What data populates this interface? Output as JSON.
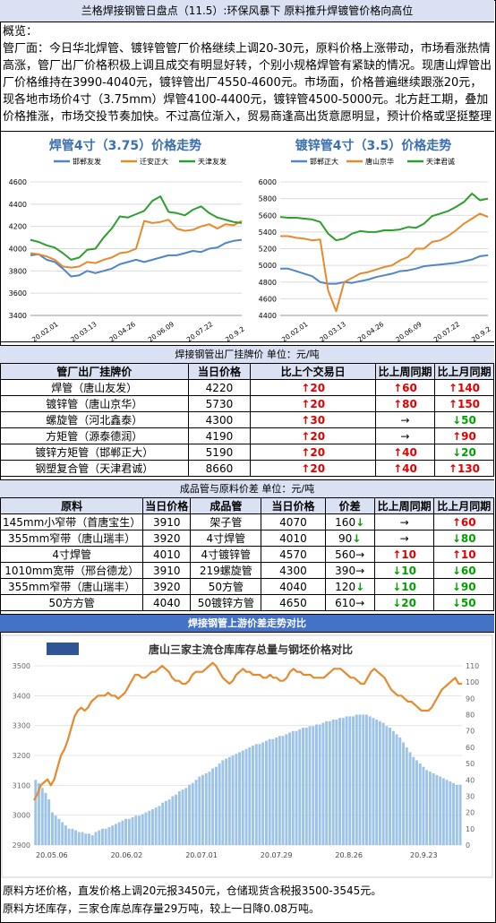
{
  "header": {
    "title": "兰格焊接钢管日盘点（11.5）:环保风暴下  原料推升焊镀管价格向高位"
  },
  "summary": {
    "label": "概览：",
    "text": "管厂面：今日华北焊管、镀锌管管厂价格继续上调20-30元，原料价格上涨带动，市场看涨热情高涨，管厂出厂价格积极上调且成交有明显好转，个别小规格焊管有紧缺的情况。现唐山焊管出厂价格维持在3990-4040元，镀锌管出厂4550-4600元。市场面，价格普遍继续跟涨20元，现各地市场价4寸（3.75mm）焊管4100-4400元，镀锌管4500-5000元。北方赶工期，叠加价格推涨，市场交投节奏加快。不过高位渐入，贸易商逢高出货意愿明显，预计价格或坚挺整理"
  },
  "colors": {
    "blue": "#4f86c6",
    "orange": "#e58a2e",
    "green": "#2ca02c",
    "bar": "#9dc3e6",
    "up": "#e00000",
    "down": "#00a000"
  },
  "chart1": {
    "title": "焊管4寸（3.75）价格走势",
    "legend": [
      "邯郸友发",
      "迁安正大",
      "天津友发"
    ],
    "yticks": [
      "4600",
      "4400",
      "4200",
      "4000",
      "3800",
      "3600",
      "3400"
    ],
    "xticks": [
      "20.02.01",
      "20.03.13",
      "20.04.26",
      "20.06.09",
      "20.07.22",
      "20.9.2"
    ]
  },
  "chart2": {
    "title": "镀锌管4寸（3.5）价格走势",
    "legend": [
      "邯郸正大",
      "唐山京华",
      "天津君诚"
    ],
    "yticks": [
      "6000",
      "5800",
      "5600",
      "5400",
      "5200",
      "5000",
      "4800",
      "4600",
      "4400"
    ],
    "xticks": [
      "20.02.01",
      "20.03.13",
      "20.04.26",
      "20.06.09",
      "20.07.22",
      "20.9.2"
    ]
  },
  "chart_data": [
    {
      "type": "line",
      "title": "焊管4寸（3.75）价格走势",
      "ylim": [
        3400,
        4600
      ],
      "series": [
        {
          "name": "邯郸友发",
          "values": [
            3940,
            3950,
            3900,
            3880,
            3820,
            3750,
            3760,
            3800,
            3780,
            3800,
            3820,
            3860,
            3880,
            3900,
            3880,
            3900,
            3920,
            3940,
            3940,
            3960,
            3980,
            3970,
            4000,
            4010,
            4050,
            4070,
            4080
          ]
        },
        {
          "name": "迁安正大",
          "values": [
            3960,
            3950,
            3930,
            3900,
            3840,
            3830,
            3840,
            3880,
            3870,
            3900,
            3920,
            3960,
            3970,
            4000,
            4250,
            4230,
            4240,
            4260,
            4180,
            4160,
            4170,
            4200,
            4220,
            4180,
            4220,
            4210,
            4250
          ]
        },
        {
          "name": "天津友发",
          "values": [
            4080,
            4060,
            4030,
            4010,
            3960,
            3900,
            3920,
            3990,
            4000,
            4100,
            4180,
            4290,
            4280,
            4310,
            4340,
            4430,
            4470,
            4330,
            4320,
            4300,
            4350,
            4380,
            4320,
            4280,
            4260,
            4240,
            4230
          ]
        }
      ]
    },
    {
      "type": "line",
      "title": "镀锌管4寸（3.5）价格走势",
      "ylim": [
        4400,
        6000
      ],
      "series": [
        {
          "name": "邯郸正大",
          "values": [
            4960,
            4960,
            4930,
            4900,
            4870,
            4800,
            4780,
            4780,
            4800,
            4790,
            4810,
            4830,
            4860,
            4880,
            4900,
            4930,
            4940,
            4960,
            4990,
            5000,
            5010,
            5020,
            5030,
            5050,
            5070,
            5110,
            5120
          ]
        },
        {
          "name": "唐山京华",
          "values": [
            5350,
            5350,
            5330,
            5320,
            5300,
            5310,
            4700,
            4450,
            4800,
            4850,
            4900,
            4920,
            4950,
            4980,
            5000,
            5060,
            5100,
            5200,
            5200,
            5280,
            5300,
            5350,
            5420,
            5500,
            5560,
            5620,
            5580
          ]
        },
        {
          "name": "天津君诚",
          "values": [
            5580,
            5570,
            5570,
            5560,
            5550,
            5520,
            5380,
            5300,
            5320,
            5380,
            5410,
            5400,
            5400,
            5420,
            5420,
            5430,
            5460,
            5450,
            5500,
            5590,
            5620,
            5650,
            5700,
            5760,
            5860,
            5780,
            5800
          ]
        }
      ]
    },
    {
      "type": "line",
      "title": "唐山三家主流仓库库存总量与钢坯价格对比",
      "ylim": [
        2900,
        3500
      ],
      "y2lim": [
        0,
        110
      ],
      "xticks": [
        "20.05.06",
        "20.06.02",
        "20.07.01",
        "20.07.29",
        "20.8.26",
        "20.9.23"
      ],
      "series": [
        {
          "name": "",
          "axis": "left",
          "values": [
            3050,
            3070,
            3100,
            3110,
            3120,
            3100,
            3120,
            3160,
            3200,
            3220,
            3250,
            3290,
            3330,
            3350,
            3360,
            3350,
            3360,
            3380,
            3390,
            3400,
            3400,
            3400,
            3410,
            3400,
            3400,
            3390,
            3400,
            3410,
            3430,
            3450,
            3470,
            3470,
            3460,
            3460,
            3470,
            3480,
            3480,
            3490,
            3500,
            3490,
            3480,
            3460,
            3450,
            3450,
            3440,
            3440,
            3450,
            3470,
            3480,
            3480,
            3480,
            3490,
            3500,
            3510,
            3500,
            3480,
            3460,
            3450,
            3440,
            3450,
            3470,
            3480,
            3490,
            3480,
            3480,
            3470,
            3470,
            3470,
            3460,
            3460,
            3470,
            3460,
            3460,
            3450,
            3450,
            3460,
            3480,
            3490,
            3480,
            3480,
            3470,
            3470,
            3470,
            3460,
            3460,
            3460,
            3460,
            3470,
            3480,
            3490,
            3490,
            3490,
            3480,
            3470,
            3460,
            3460,
            3450,
            3440,
            3440,
            3460,
            3480,
            3490,
            3480,
            3470,
            3460,
            3440,
            3420,
            3410,
            3400,
            3400,
            3390,
            3380,
            3380,
            3370,
            3360,
            3350,
            3350,
            3350,
            3360,
            3380,
            3400,
            3420,
            3430,
            3440,
            3450,
            3460,
            3440,
            3440
          ]
        },
        {
          "name": "",
          "axis": "right",
          "type": "bar",
          "values": [
            40,
            38,
            35,
            32,
            28,
            20,
            18,
            16,
            14,
            12,
            10,
            10,
            9,
            8,
            8,
            7,
            7,
            6,
            8,
            9,
            10,
            10,
            11,
            12,
            13,
            14,
            15,
            16,
            16,
            17,
            18,
            18,
            19,
            20,
            21,
            22,
            23,
            24,
            26,
            27,
            28,
            30,
            31,
            33,
            34,
            35,
            37,
            38,
            40,
            42,
            43,
            44,
            45,
            47,
            48,
            50,
            52,
            53,
            54,
            55,
            56,
            57,
            58,
            59,
            60,
            61,
            62,
            62,
            63,
            64,
            65,
            65,
            66,
            67,
            67,
            68,
            69,
            70,
            70,
            71,
            72,
            72,
            73,
            73,
            74,
            74,
            75,
            76,
            76,
            77,
            77,
            78,
            78,
            79,
            79,
            79,
            80,
            80,
            80,
            80,
            79,
            78,
            77,
            76,
            75,
            73,
            72,
            70,
            68,
            66,
            63,
            60,
            57,
            54,
            52,
            50,
            48,
            46,
            45,
            44,
            43,
            42,
            41,
            40,
            39,
            38,
            37,
            37
          ]
        }
      ]
    }
  ],
  "price_table": {
    "header_title": "焊接钢管出厂挂牌价    单位：元/吨",
    "columns": [
      "管厂出厂挂牌价",
      "当日价格",
      "比上个交易日",
      "比上周同期",
      "比上月同期"
    ],
    "rows": [
      {
        "name": "焊管（唐山友发）",
        "price": "4220",
        "d1": "20",
        "d1dir": "up",
        "w": "60",
        "wdir": "up",
        "m": "140",
        "mdir": "up"
      },
      {
        "name": "镀锌管（唐山京华）",
        "price": "5730",
        "d1": "20",
        "d1dir": "up",
        "w": "80",
        "wdir": "up",
        "m": "150",
        "mdir": "up"
      },
      {
        "name": "螺旋管（河北鑫泰）",
        "price": "4300",
        "d1": "30",
        "d1dir": "up",
        "w": "",
        "wdir": "flat",
        "m": "50",
        "mdir": "down"
      },
      {
        "name": "方矩管（源泰德润）",
        "price": "4190",
        "d1": "20",
        "d1dir": "up",
        "w": "",
        "wdir": "flat",
        "m": "90",
        "mdir": "up"
      },
      {
        "name": "镀锌方矩管（邯郸正大）",
        "price": "5190",
        "d1": "20",
        "d1dir": "up",
        "w": "40",
        "wdir": "up",
        "m": "20",
        "mdir": "down"
      },
      {
        "name": "钢塑复合管（天津君诚）",
        "price": "8660",
        "d1": "20",
        "d1dir": "up",
        "w": "40",
        "wdir": "up",
        "m": "130",
        "mdir": "up"
      }
    ]
  },
  "spread_table": {
    "header_title": "成品管与原料价差    单位：元/吨",
    "columns": [
      "原料",
      "当日价格",
      "成品管",
      "当日价格",
      "价差",
      "比上周同期",
      "比上月同期"
    ],
    "rows": [
      {
        "raw": "145mm小窄带（首唐宝生）",
        "rp": "3910",
        "prod": "架子管",
        "pp": "4070",
        "diff": "160",
        "diffdir": "down",
        "w": "",
        "wdir": "flat",
        "m": "60",
        "mdir": "up"
      },
      {
        "raw": "355mm窄带（唐山瑞丰）",
        "rp": "3920",
        "prod": "4寸焊管",
        "pp": "4010",
        "diff": "90",
        "diffdir": "down",
        "w": "",
        "wdir": "flat",
        "m": "80",
        "mdir": "down"
      },
      {
        "raw": "4寸焊管",
        "rp": "4010",
        "prod": "4寸镀锌管",
        "pp": "4570",
        "diff": "560",
        "diffdir": "flat",
        "w": "10",
        "wdir": "up",
        "m": "10",
        "mdir": "up"
      },
      {
        "raw": "1010mm宽带（邢台德龙）",
        "rp": "3910",
        "prod": "219螺旋管",
        "pp": "4300",
        "diff": "390",
        "diffdir": "flat",
        "w": "10",
        "wdir": "down",
        "m": "60",
        "mdir": "down"
      },
      {
        "raw": "355mm窄带（唐山瑞丰）",
        "rp": "3920",
        "prod": "50方管",
        "pp": "4040",
        "diff": "120",
        "diffdir": "down",
        "w": "10",
        "wdir": "down",
        "m": "90",
        "mdir": "down"
      },
      {
        "raw": "50方方管",
        "rp": "4040",
        "prod": "50镀锌方管",
        "pp": "4650",
        "diff": "610",
        "diffdir": "flat",
        "w": "20",
        "wdir": "down",
        "m": "50",
        "mdir": "down"
      }
    ]
  },
  "bottom_section": {
    "header_title": "焊接钢管上游价差走势对比",
    "chart_title": "唐山三家主流仓库库存总量与钢坯价格对比",
    "yticks_left": [
      "3500",
      "3400",
      "3300",
      "3200",
      "3100",
      "3000",
      "2900"
    ],
    "yticks_right": [
      "110",
      "100",
      "90",
      "80",
      "70",
      "60",
      "50",
      "40",
      "30",
      "20",
      "10",
      "0"
    ],
    "xticks": [
      "20.05.06",
      "20.06.02",
      "20.07.01",
      "20.07.29",
      "20.8.26",
      "20.9.23"
    ]
  },
  "footer": {
    "line1": "原料方坯价格，直发价格上调20元报3450元，仓储现货含税报3500-3545元。",
    "line2": "原料方坯库存，三家仓库总库存量29万吨，较上一日降0.08万吨。"
  }
}
